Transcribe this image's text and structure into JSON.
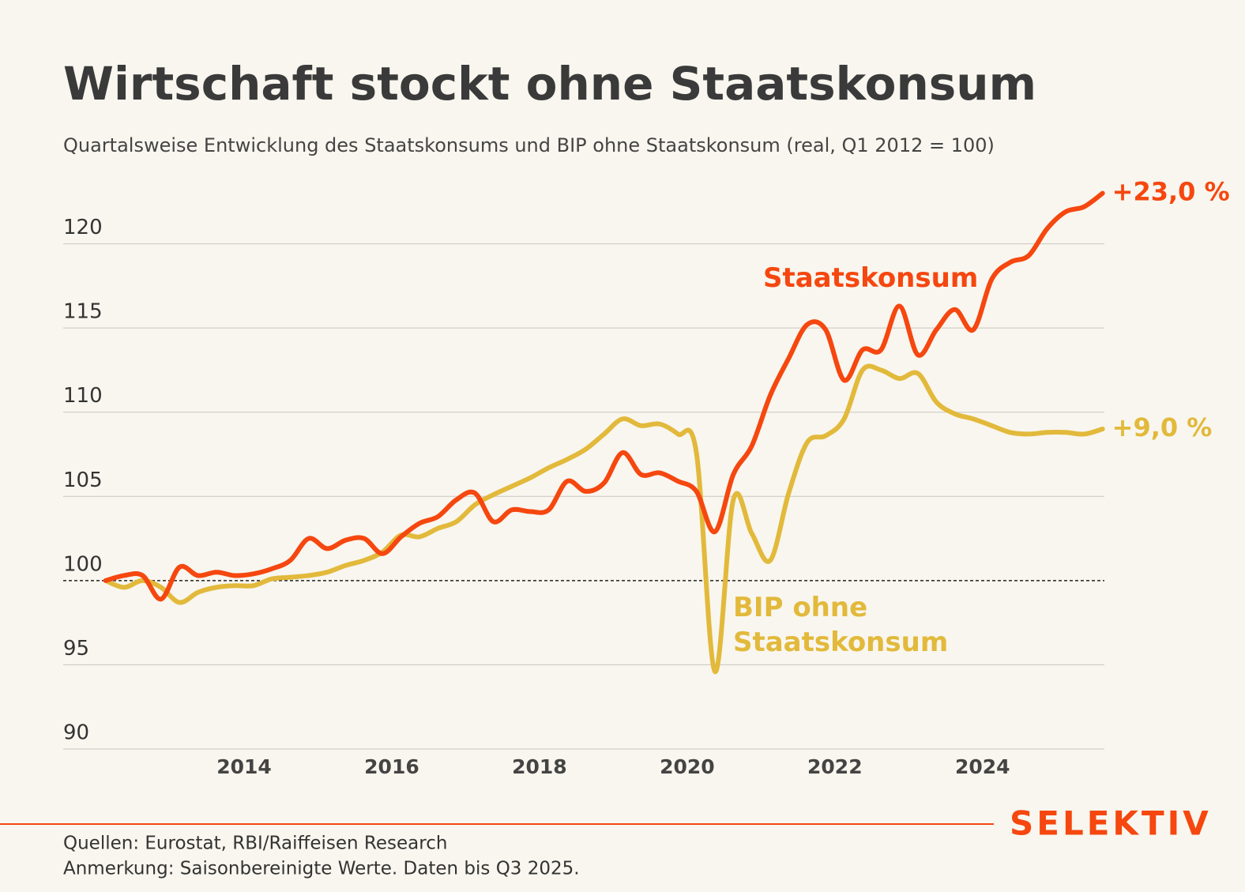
{
  "chart_data": {
    "type": "line",
    "title": "Wirtschaft stockt ohne Staatskonsum",
    "subtitle": "Quartalsweise Entwicklung des Staatskonsums und BIP ohne Staatskonsum (real, Q1 2012 = 100)",
    "x": [
      2012.125,
      2012.375,
      2012.625,
      2012.875,
      2013.125,
      2013.375,
      2013.625,
      2013.875,
      2014.125,
      2014.375,
      2014.625,
      2014.875,
      2015.125,
      2015.375,
      2015.625,
      2015.875,
      2016.125,
      2016.375,
      2016.625,
      2016.875,
      2017.125,
      2017.375,
      2017.625,
      2017.875,
      2018.125,
      2018.375,
      2018.625,
      2018.875,
      2019.125,
      2019.375,
      2019.625,
      2019.875,
      2020.125,
      2020.375,
      2020.625,
      2020.875,
      2021.125,
      2021.375,
      2021.625,
      2021.875,
      2022.125,
      2022.375,
      2022.625,
      2022.875,
      2023.125,
      2023.375,
      2023.625,
      2023.875,
      2024.125,
      2024.375,
      2024.625,
      2024.875,
      2025.125,
      2025.375,
      2025.625
    ],
    "series": [
      {
        "name": "Staatskonsum",
        "color": "#f5470f",
        "end_label": "+23,0 %",
        "values": [
          100,
          100.3,
          100.3,
          98.9,
          100.8,
          100.3,
          100.5,
          100.3,
          100.4,
          100.7,
          101.2,
          102.5,
          101.9,
          102.4,
          102.5,
          101.6,
          102.6,
          103.4,
          103.8,
          104.8,
          105.2,
          103.5,
          104.2,
          104.1,
          104.2,
          105.9,
          105.3,
          105.8,
          107.6,
          106.3,
          106.4,
          105.9,
          105.3,
          102.9,
          106.3,
          108.0,
          111.0,
          113.2,
          115.2,
          114.9,
          111.9,
          113.7,
          113.7,
          116.3,
          113.4,
          114.9,
          116.1,
          114.9,
          117.9,
          118.9,
          119.3,
          120.9,
          121.9,
          122.2,
          123.0
        ]
      },
      {
        "name": "BIP ohne Staatskonsum",
        "color": "#e2b93b",
        "end_label": "+9,0 %",
        "values": [
          100,
          99.6,
          100,
          99.6,
          98.7,
          99.3,
          99.6,
          99.7,
          99.7,
          100.1,
          100.2,
          100.3,
          100.5,
          100.9,
          101.2,
          101.7,
          102.7,
          102.6,
          103.1,
          103.5,
          104.5,
          105.1,
          105.6,
          106.1,
          106.7,
          107.2,
          107.8,
          108.7,
          109.6,
          109.2,
          109.3,
          108.7,
          107.6,
          94.6,
          104.8,
          102.8,
          101.2,
          105.2,
          108.2,
          108.6,
          109.6,
          112.5,
          112.5,
          112.0,
          112.3,
          110.6,
          109.9,
          109.6,
          109.2,
          108.8,
          108.7,
          108.8,
          108.8,
          108.7,
          109.0
        ]
      }
    ],
    "xlim": [
      2011.55,
      2025.65
    ],
    "xticks": [
      2014,
      2016,
      2018,
      2020,
      2022,
      2024
    ],
    "ylim": [
      90,
      125
    ],
    "yticks": [
      90,
      95,
      100,
      105,
      110,
      115,
      120
    ],
    "baseline": 100,
    "grid": true,
    "sources": "Quellen: Eurostat, RBI/Raiffeisen Research",
    "note": "Anmerkung: Saisonbereinigte Werte. Daten bis Q3 2025.",
    "brand": "SELEKTIV"
  }
}
